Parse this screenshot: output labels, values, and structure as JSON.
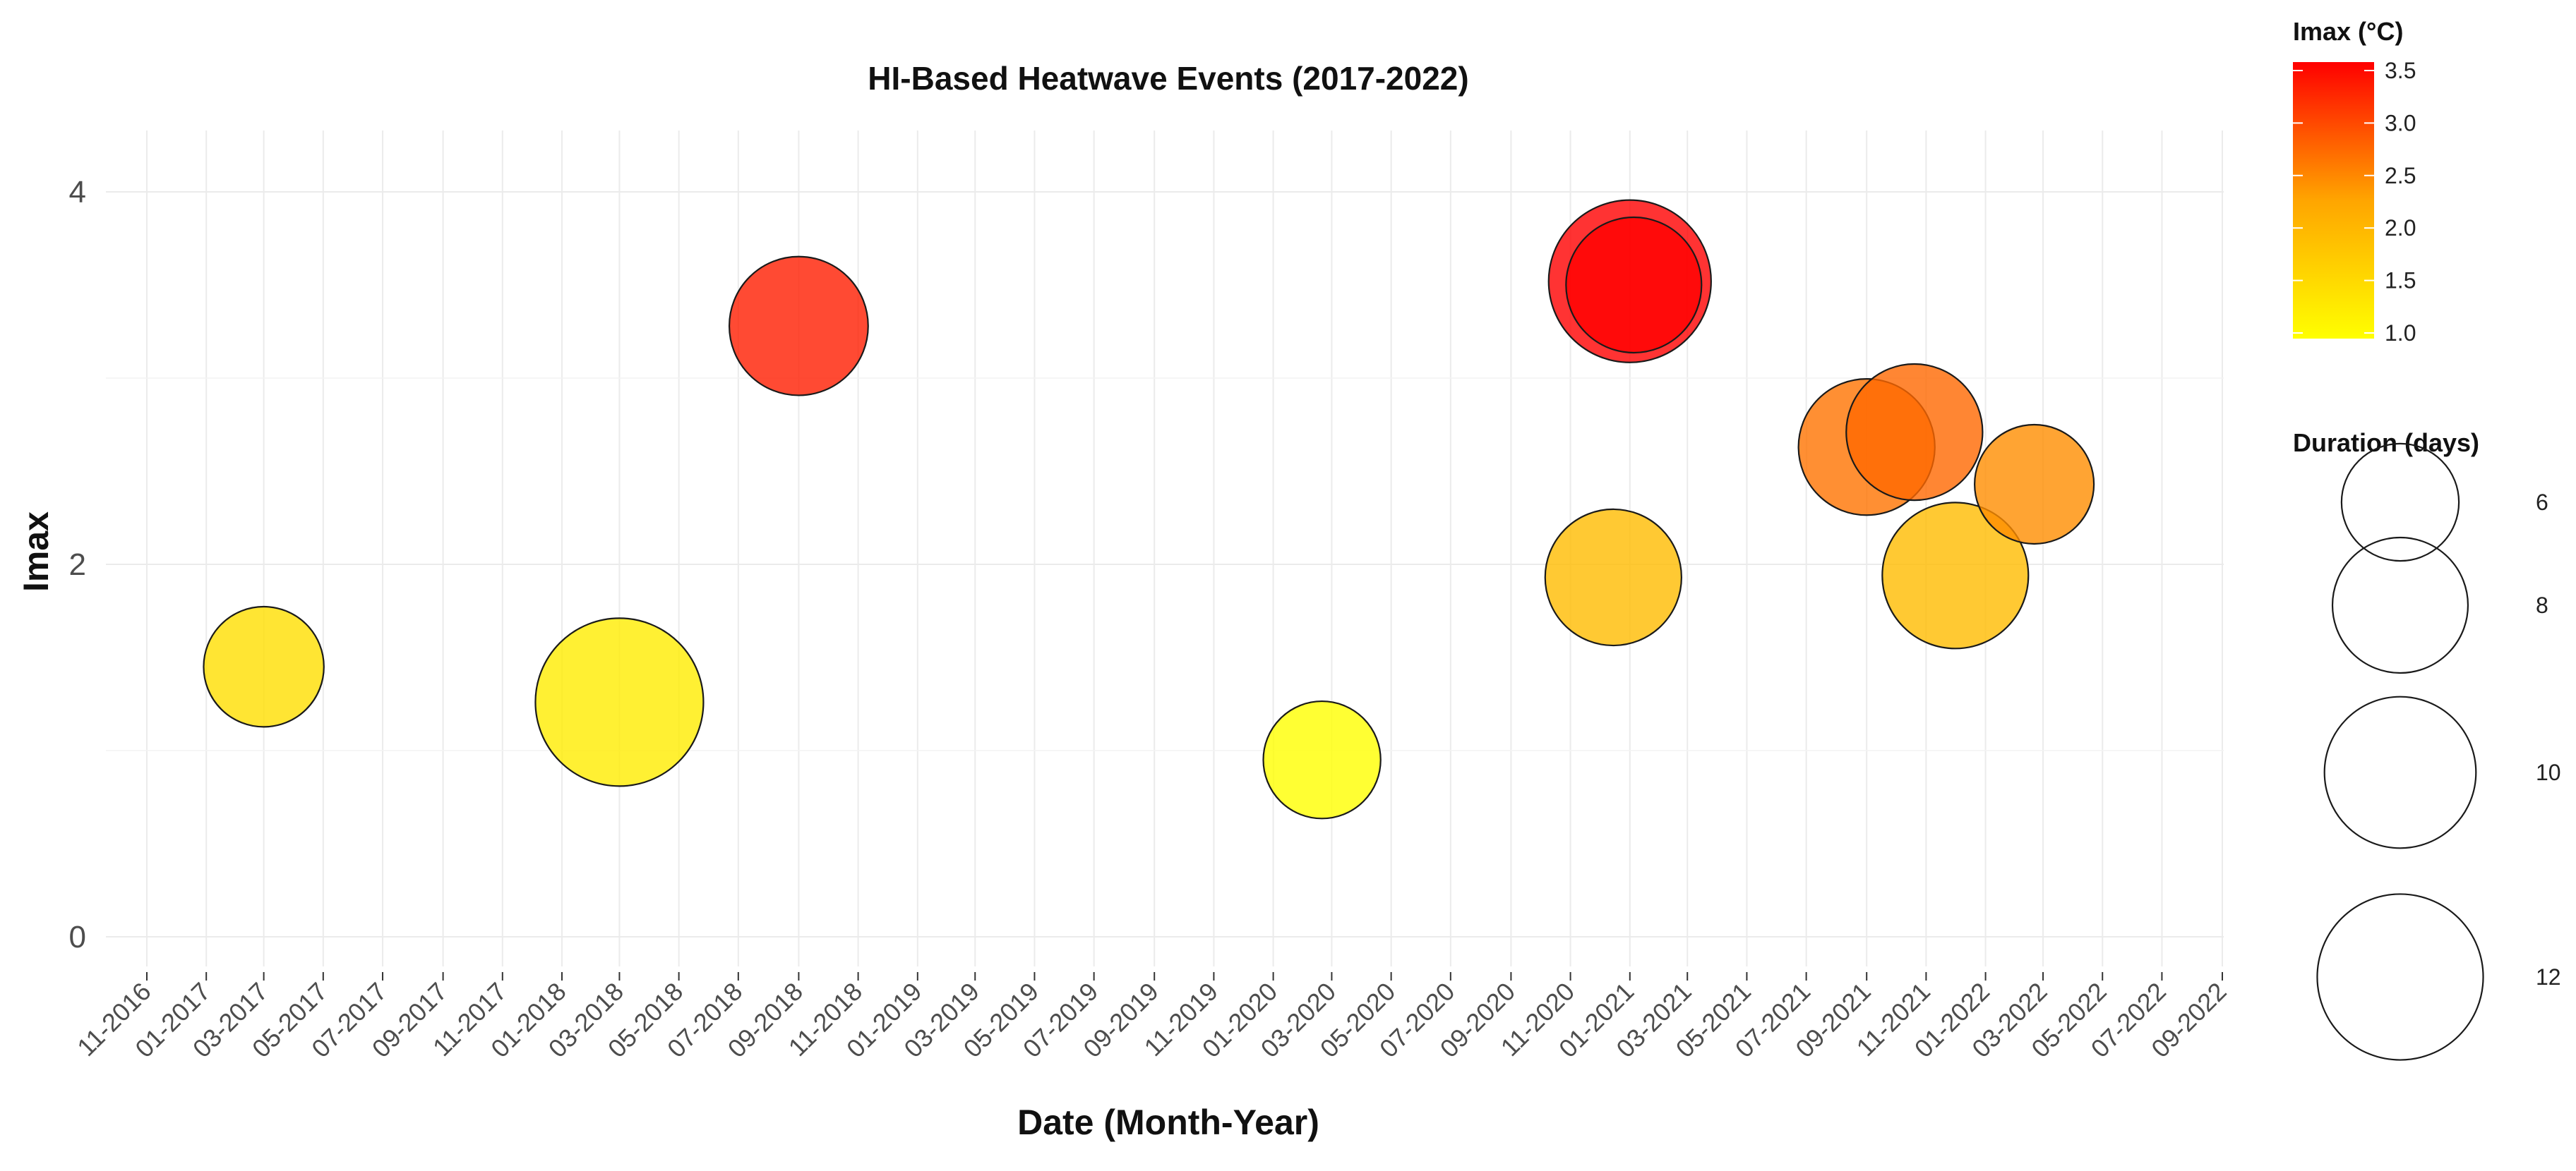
{
  "chart_data": {
    "type": "scatter",
    "title": "HI-Based Heatwave Events (2017-2022)",
    "xlabel": "Date (Month-Year)",
    "ylabel": "Imax",
    "xlim": [
      "2016-11-01",
      "2022-09-01"
    ],
    "ylim": [
      -0.2,
      4.4
    ],
    "yticks": [
      0,
      2,
      4
    ],
    "xticks": [
      "11-2016",
      "01-2017",
      "03-2017",
      "05-2017",
      "07-2017",
      "09-2017",
      "11-2017",
      "01-2018",
      "03-2018",
      "05-2018",
      "07-2018",
      "09-2018",
      "11-2018",
      "01-2019",
      "03-2019",
      "05-2019",
      "07-2019",
      "09-2019",
      "11-2019",
      "01-2020",
      "03-2020",
      "05-2020",
      "07-2020",
      "09-2020",
      "11-2020",
      "01-2021",
      "03-2021",
      "05-2021",
      "07-2021",
      "09-2021",
      "11-2021",
      "01-2022",
      "03-2022",
      "05-2022",
      "07-2022",
      "09-2022"
    ],
    "grid": true,
    "points": [
      {
        "date": "2017-03-01",
        "imax": 1.45,
        "duration": 6.3
      },
      {
        "date": "2018-03-01",
        "imax": 1.26,
        "duration": 12.3
      },
      {
        "date": "2018-09-01",
        "imax": 3.28,
        "duration": 8.4
      },
      {
        "date": "2020-02-20",
        "imax": 0.95,
        "duration": 6.0
      },
      {
        "date": "2020-12-15",
        "imax": 1.93,
        "duration": 8.1
      },
      {
        "date": "2021-01-01",
        "imax": 3.52,
        "duration": 11.5
      },
      {
        "date": "2021-01-05",
        "imax": 3.5,
        "duration": 8.0
      },
      {
        "date": "2021-09-01",
        "imax": 2.63,
        "duration": 8.1
      },
      {
        "date": "2021-10-20",
        "imax": 2.71,
        "duration": 8.1
      },
      {
        "date": "2021-12-01",
        "imax": 1.94,
        "duration": 9.3
      },
      {
        "date": "2022-02-20",
        "imax": 2.43,
        "duration": 6.2
      }
    ],
    "color_legend": {
      "title": "Imax (°C)",
      "range": [
        1.0,
        3.5
      ],
      "labels": [
        "3.5",
        "3.0",
        "2.5",
        "2.0",
        "1.5",
        "1.0"
      ],
      "colors": [
        "#ffff00",
        "#ffa500",
        "#ff0000"
      ]
    },
    "size_legend": {
      "title": "Duration (days)",
      "values": [
        6,
        8,
        10,
        12
      ],
      "labels": [
        "6",
        "8",
        "10",
        "12"
      ]
    },
    "legend_position": "right"
  }
}
